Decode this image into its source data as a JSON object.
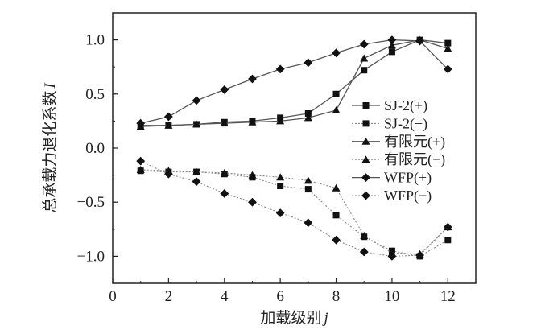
{
  "chart_data": {
    "type": "line",
    "xlabel_text": "加载级别",
    "xlabel_var": "j",
    "ylabel_text": "总承载力退化系数",
    "ylabel_var": "I",
    "xlim": [
      0,
      13
    ],
    "ylim": [
      -1.25,
      1.25
    ],
    "xticks": [
      0,
      2,
      4,
      6,
      8,
      10,
      12
    ],
    "yticks": [
      1.0,
      0.5,
      0.0,
      -0.5,
      -1.0
    ],
    "xtick_labels": [
      "0",
      "2",
      "4",
      "6",
      "8",
      "10",
      "12"
    ],
    "ytick_labels": [
      "1.0",
      "0.5",
      "0.0",
      "−0.5",
      "−1.0"
    ],
    "grid": false,
    "legend_position": "right",
    "series": [
      {
        "name": "SJ-2(+)",
        "marker": "square",
        "line": "solid",
        "x": [
          1,
          2,
          3,
          4,
          5,
          6,
          7,
          8,
          9,
          10,
          11,
          12
        ],
        "y": [
          0.21,
          0.21,
          0.22,
          0.24,
          0.25,
          0.28,
          0.32,
          0.5,
          0.72,
          0.89,
          1.0,
          0.97
        ]
      },
      {
        "name": "SJ-2(−)",
        "marker": "square",
        "line": "dotted",
        "x": [
          1,
          2,
          3,
          4,
          5,
          6,
          7,
          8,
          9,
          10,
          11,
          12
        ],
        "y": [
          -0.21,
          -0.22,
          -0.22,
          -0.24,
          -0.27,
          -0.35,
          -0.38,
          -0.62,
          -0.82,
          -0.95,
          -1.0,
          -0.85
        ]
      },
      {
        "name": "有限元(+)",
        "marker": "triangle",
        "line": "solid",
        "x": [
          1,
          2,
          3,
          4,
          5,
          6,
          7,
          8,
          9,
          10,
          11,
          12
        ],
        "y": [
          0.2,
          0.21,
          0.22,
          0.23,
          0.24,
          0.25,
          0.28,
          0.35,
          0.83,
          0.95,
          1.0,
          0.92
        ]
      },
      {
        "name": "有限元(−)",
        "marker": "triangle",
        "line": "dotted",
        "x": [
          1,
          2,
          3,
          4,
          5,
          6,
          7,
          8,
          9,
          10,
          11,
          12
        ],
        "y": [
          -0.2,
          -0.21,
          -0.22,
          -0.23,
          -0.25,
          -0.27,
          -0.3,
          -0.37,
          -0.81,
          -0.97,
          -0.98,
          -0.73
        ]
      },
      {
        "name": "WFP(+)",
        "marker": "diamond",
        "line": "solid",
        "x": [
          1,
          2,
          3,
          4,
          5,
          6,
          7,
          8,
          9,
          10,
          11,
          12
        ],
        "y": [
          0.23,
          0.29,
          0.44,
          0.54,
          0.64,
          0.73,
          0.79,
          0.88,
          0.96,
          1.0,
          0.99,
          0.73
        ]
      },
      {
        "name": "WFP(−)",
        "marker": "diamond",
        "line": "dotted",
        "x": [
          1,
          2,
          3,
          4,
          5,
          6,
          7,
          8,
          9,
          10,
          11,
          12
        ],
        "y": [
          -0.12,
          -0.24,
          -0.31,
          -0.42,
          -0.5,
          -0.6,
          -0.69,
          -0.85,
          -0.96,
          -1.0,
          -0.99,
          -0.73
        ]
      }
    ]
  }
}
